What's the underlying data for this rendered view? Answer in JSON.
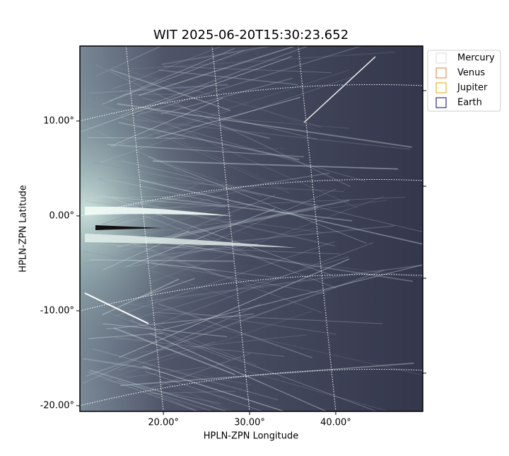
{
  "chart_data": {
    "type": "image",
    "title": "WIT 2025-06-20T15:30:23.652",
    "x_label": "HPLN-ZPN Longitude",
    "y_label": "HPLN-ZPN Latitude",
    "xlim": [
      10.3,
      50.1
    ],
    "ylim": [
      -20.6,
      17.9
    ],
    "xticks": [
      {
        "value": 20,
        "label": "20.00°"
      },
      {
        "value": 30,
        "label": "30.00°"
      },
      {
        "value": 40,
        "label": "40.00°"
      }
    ],
    "yticks": [
      {
        "value": 10,
        "label": "10.00°"
      },
      {
        "value": 0,
        "label": "0.00°"
      },
      {
        "value": -10,
        "label": "-10.00°"
      },
      {
        "value": -20,
        "label": "-20.00°"
      }
    ],
    "grid": true,
    "legend_position": "upper right outside",
    "series": [
      {
        "name": "Mercury",
        "color": "#d9d9d9"
      },
      {
        "name": "Venus",
        "color": "#e07b39"
      },
      {
        "name": "Jupiter",
        "color": "#e0a800"
      },
      {
        "name": "Earth",
        "color": "#000080"
      }
    ]
  }
}
